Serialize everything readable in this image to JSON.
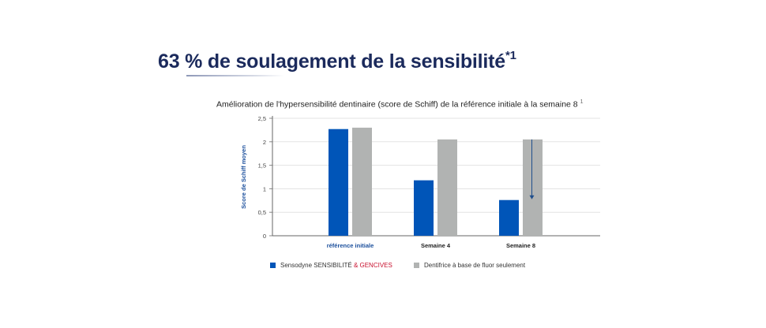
{
  "headline": {
    "text": "63 % de soulagement de la sensibilité",
    "marker": "*1"
  },
  "chart_data": {
    "type": "bar",
    "title": "Amélioration de l'hypersensibilité dentinaire (score de Schiff) de la référence initiale à la semaine 8",
    "title_marker": "1",
    "xlabel": "",
    "ylabel": "Score de Schiff moyen",
    "ylim": [
      0,
      2.5
    ],
    "yticks": [
      "0",
      "0,5",
      "1",
      "1,5",
      "2",
      "2,5"
    ],
    "ytick_values": [
      0,
      0.5,
      1,
      1.5,
      2,
      2.5
    ],
    "categories": [
      "référence initiale",
      "Semaine 4",
      "Semaine 8"
    ],
    "series": [
      {
        "name": "Dentifrice à base de fluor seulement",
        "color": "#b1b3b2",
        "values": [
          2.3,
          2.05,
          2.05
        ]
      },
      {
        "name": "Sensodyne SENSIBILITÉ & GENCIVES",
        "color": "#0055b8",
        "values": [
          2.27,
          1.18,
          0.76
        ]
      }
    ],
    "grid": true,
    "legend_position": "bottom",
    "annotation": "arrow from comparator level down to Sensodyne bar at Semaine 8"
  },
  "legend": [
    {
      "prefix": "Sensodyne SENSIBILITÉ",
      "amp": " & ",
      "suffix": "GENCIVES",
      "color": "#0055b8"
    },
    {
      "label": "Dentifrice à base de fluor seulement",
      "color": "#b1b3b2"
    }
  ],
  "colors": {
    "headline": "#1b2a5c",
    "accent_red": "#c8102e",
    "arrow": "#1f4e8c",
    "category_label": "#1b4f9c"
  }
}
